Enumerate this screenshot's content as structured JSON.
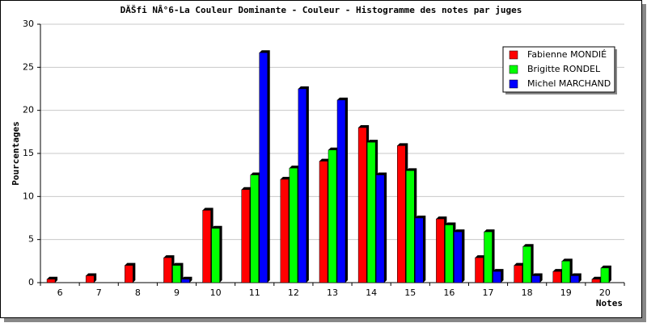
{
  "chart_data": {
    "type": "bar",
    "title": "DĂŠfi NÂ°6-La Couleur Dominante - Couleur - Histogramme des notes par juges",
    "y_label": "Pourcentages",
    "x_label": "Notes",
    "categories": [
      "6",
      "7",
      "8",
      "9",
      "10",
      "11",
      "12",
      "13",
      "14",
      "15",
      "16",
      "17",
      "18",
      "19",
      "20"
    ],
    "series": [
      {
        "name": "Fabienne MONDIÉ",
        "color": "#ff0000",
        "values": [
          0.4,
          0.8,
          2.0,
          2.9,
          8.4,
          10.8,
          12.0,
          14.1,
          18.0,
          15.9,
          7.4,
          2.9,
          2.0,
          1.3,
          0.4
        ]
      },
      {
        "name": "Brigitte RONDEL",
        "color": "#00ff00",
        "values": [
          0,
          0,
          0,
          2.0,
          6.3,
          12.5,
          13.3,
          15.4,
          16.3,
          13.0,
          6.7,
          5.9,
          4.2,
          2.5,
          1.7
        ]
      },
      {
        "name": "Michel MARCHAND",
        "color": "#0000ff",
        "values": [
          0,
          0,
          0,
          0.4,
          0,
          26.7,
          22.5,
          21.2,
          12.5,
          7.5,
          5.9,
          1.3,
          0.8,
          0.8,
          0
        ]
      }
    ],
    "ylim": [
      0,
      30
    ],
    "yticks": [
      0,
      5,
      10,
      15,
      20,
      25,
      30
    ],
    "grid": true,
    "legend": "top-right"
  }
}
